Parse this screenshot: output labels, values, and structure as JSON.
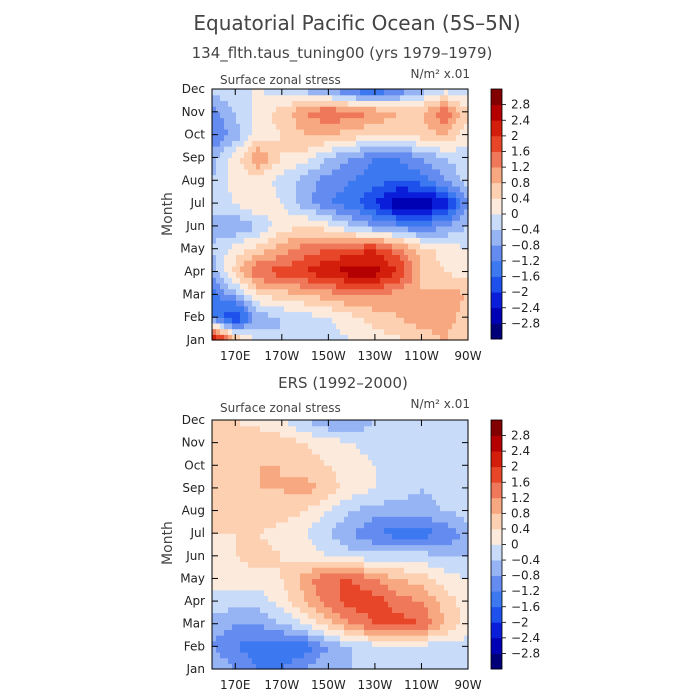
{
  "figure": {
    "title": "Equatorial Pacific Ocean (5S–5N)",
    "colors": {
      "levels": [
        "#000078",
        "#0000b4",
        "#0a1eda",
        "#1e50ec",
        "#3c78f0",
        "#648cf0",
        "#96b4f4",
        "#c8dcfa",
        "#fceadc",
        "#fcd0b0",
        "#f8a880",
        "#f0785a",
        "#e84628",
        "#d21e0a",
        "#b40000",
        "#820000"
      ],
      "text": "#444444",
      "frame": "#000000"
    }
  },
  "chart_data": [
    {
      "type": "heatmap",
      "title": "134_flth.taus_tuning00 (yrs 1979–1979)",
      "left_label": "Surface zonal stress",
      "units_label": "N/m² x.01",
      "ylabel": "Month",
      "xlabel": "",
      "x_ticks": [
        "170E",
        "170W",
        "150W",
        "130W",
        "110W",
        "90W"
      ],
      "x_range": [
        "160E",
        "90W"
      ],
      "y_ticks": [
        "Jan",
        "Feb",
        "Mar",
        "Apr",
        "May",
        "Jun",
        "Jul",
        "Aug",
        "Sep",
        "Oct",
        "Nov",
        "Dec"
      ],
      "colorbar_ticks": [
        "2.8",
        "2.4",
        "2",
        "1.6",
        "1.2",
        "0.8",
        "0.4",
        "0",
        "−0.4",
        "−0.8",
        "−1.2",
        "−1.6",
        "−2",
        "−2.4",
        "−2.8"
      ],
      "lon": [
        160,
        170,
        180,
        190,
        200,
        210,
        220,
        230,
        240,
        250,
        260,
        270
      ],
      "months": [
        "Jan",
        "Feb",
        "Mar",
        "Apr",
        "May",
        "Jun",
        "Jul",
        "Aug",
        "Sep",
        "Oct",
        "Nov",
        "Dec"
      ],
      "values": [
        [
          3.0,
          1.0,
          -0.2,
          -0.4,
          -0.3,
          -0.2,
          0.0,
          0.2,
          0.3,
          0.6,
          0.8,
          0.4
        ],
        [
          -1.2,
          -2.2,
          -0.6,
          -0.4,
          -0.2,
          0.0,
          0.3,
          0.6,
          0.8,
          1.0,
          1.0,
          0.6
        ],
        [
          -1.4,
          -0.6,
          0.4,
          0.6,
          0.8,
          1.0,
          1.2,
          1.2,
          1.0,
          0.8,
          1.0,
          0.8
        ],
        [
          -0.6,
          0.6,
          1.6,
          1.8,
          2.0,
          2.4,
          2.6,
          2.6,
          2.0,
          0.8,
          0.4,
          0.2
        ],
        [
          -0.4,
          0.2,
          0.6,
          1.0,
          1.4,
          1.6,
          1.8,
          2.0,
          1.4,
          0.6,
          0.2,
          0.0
        ],
        [
          -0.6,
          -0.8,
          -0.4,
          0.2,
          0.4,
          0.2,
          -0.4,
          -0.8,
          -1.0,
          -1.2,
          -0.8,
          -0.4
        ],
        [
          -0.2,
          0.0,
          0.4,
          0.0,
          -0.6,
          -1.2,
          -1.4,
          -2.0,
          -2.8,
          -2.8,
          -2.4,
          -0.8
        ],
        [
          -0.4,
          0.2,
          0.2,
          -0.2,
          -0.6,
          -1.0,
          -1.2,
          -1.4,
          -1.6,
          -1.4,
          -0.8,
          -0.2
        ],
        [
          -0.6,
          0.2,
          1.2,
          0.4,
          0.2,
          -0.4,
          -0.8,
          -1.2,
          -1.2,
          -0.8,
          -0.4,
          -0.2
        ],
        [
          -1.2,
          -0.6,
          0.2,
          0.4,
          0.8,
          0.8,
          0.6,
          0.4,
          0.4,
          0.6,
          0.8,
          0.2
        ],
        [
          -1.0,
          -0.4,
          0.2,
          0.6,
          1.2,
          1.6,
          1.4,
          1.2,
          0.8,
          0.8,
          1.6,
          0.4
        ],
        [
          -0.2,
          0.0,
          0.0,
          -0.2,
          -0.6,
          -0.8,
          -1.4,
          -1.8,
          -1.2,
          -0.6,
          -0.2,
          -0.2
        ]
      ]
    },
    {
      "type": "heatmap",
      "title": "ERS (1992–2000)",
      "left_label": "Surface zonal stress",
      "units_label": "N/m² x.01",
      "ylabel": "Month",
      "xlabel": "",
      "x_ticks": [
        "170E",
        "170W",
        "150W",
        "130W",
        "110W",
        "90W"
      ],
      "x_range": [
        "160E",
        "90W"
      ],
      "y_ticks": [
        "Jan",
        "Feb",
        "Mar",
        "Apr",
        "May",
        "Jun",
        "Jul",
        "Aug",
        "Sep",
        "Oct",
        "Nov",
        "Dec"
      ],
      "colorbar_ticks": [
        "2.8",
        "2.4",
        "2",
        "1.6",
        "1.2",
        "0.8",
        "0.4",
        "0",
        "−0.4",
        "−0.8",
        "−1.2",
        "−1.6",
        "−2",
        "−2.4",
        "−2.8"
      ],
      "lon": [
        160,
        170,
        180,
        190,
        200,
        210,
        220,
        230,
        240,
        250,
        260,
        270
      ],
      "months": [
        "Jan",
        "Feb",
        "Mar",
        "Apr",
        "May",
        "Jun",
        "Jul",
        "Aug",
        "Sep",
        "Oct",
        "Nov",
        "Dec"
      ],
      "values": [
        [
          -0.4,
          -0.8,
          -1.2,
          -1.2,
          -0.8,
          -0.4,
          -0.4,
          -0.2,
          -0.2,
          -0.2,
          -0.2,
          -0.2
        ],
        [
          -0.8,
          -1.2,
          -1.4,
          -1.6,
          -1.4,
          -0.8,
          -0.4,
          -0.2,
          -0.2,
          -0.2,
          -0.2,
          -0.2
        ],
        [
          -0.6,
          -0.8,
          -0.8,
          -0.4,
          0.0,
          0.6,
          1.2,
          1.6,
          1.8,
          1.6,
          0.8,
          0.2
        ],
        [
          -0.2,
          -0.2,
          -0.2,
          0.2,
          0.8,
          1.4,
          1.8,
          1.8,
          1.4,
          1.2,
          0.6,
          0.2
        ],
        [
          0.2,
          0.2,
          0.2,
          0.4,
          1.0,
          1.6,
          1.6,
          1.2,
          0.8,
          0.6,
          0.2,
          0.0
        ],
        [
          0.2,
          0.4,
          0.6,
          0.4,
          0.2,
          0.0,
          -0.2,
          -0.2,
          -0.2,
          -0.2,
          -0.4,
          -0.4
        ],
        [
          0.4,
          0.4,
          0.4,
          0.2,
          0.0,
          -0.4,
          -0.8,
          -1.2,
          -1.4,
          -1.4,
          -1.2,
          -0.6
        ],
        [
          0.4,
          0.6,
          0.8,
          0.6,
          0.4,
          0.0,
          -0.4,
          -0.6,
          -0.6,
          -0.6,
          -0.4,
          -0.2
        ],
        [
          0.4,
          0.8,
          0.8,
          0.8,
          1.0,
          0.6,
          0.2,
          0.0,
          -0.2,
          -0.4,
          -0.2,
          -0.2
        ],
        [
          0.4,
          0.6,
          0.8,
          0.8,
          0.6,
          0.4,
          0.2,
          0.0,
          -0.2,
          -0.2,
          -0.2,
          -0.2
        ],
        [
          0.4,
          0.6,
          0.8,
          0.6,
          0.4,
          0.2,
          0.0,
          -0.2,
          -0.4,
          -0.4,
          -0.2,
          -0.2
        ],
        [
          0.4,
          0.4,
          0.2,
          0.0,
          -0.4,
          -0.8,
          -0.8,
          -0.4,
          -0.4,
          -0.2,
          -0.2,
          -0.2
        ]
      ]
    }
  ]
}
